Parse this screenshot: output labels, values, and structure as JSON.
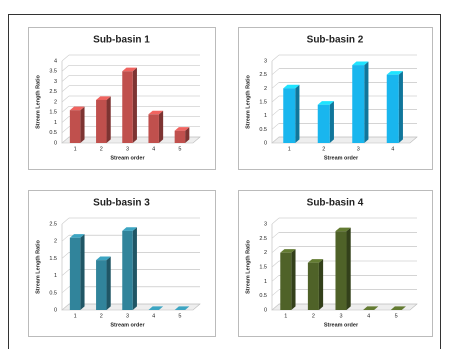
{
  "chart_data": [
    {
      "type": "bar",
      "title": "Sub-basin 1",
      "x_label": "Stream order",
      "y_label": "Stream Length Ratio",
      "categories": [
        "1",
        "2",
        "3",
        "4",
        "5"
      ],
      "values": [
        1.6,
        2.1,
        3.5,
        1.4,
        0.6
      ],
      "color": "#c0504d",
      "ylim": [
        0,
        4
      ],
      "yticks": [
        0,
        0.5,
        1,
        1.5,
        2,
        2.5,
        3,
        3.5,
        4
      ],
      "grid": true
    },
    {
      "type": "bar",
      "title": "Sub-basin 2",
      "x_label": "Stream order",
      "y_label": "Stream Length Ratio",
      "categories": [
        "1",
        "2",
        "3",
        "4"
      ],
      "values": [
        2.0,
        1.4,
        2.85,
        2.5
      ],
      "color": "#19b6ee",
      "ylim": [
        0,
        3
      ],
      "yticks": [
        0,
        0.5,
        1,
        1.5,
        2,
        2.5,
        3
      ],
      "grid": true
    },
    {
      "type": "bar",
      "title": "Sub-basin 3",
      "x_label": "Stream order",
      "y_label": "Stream Length Ratio",
      "categories": [
        "1",
        "2",
        "3",
        "4",
        "5"
      ],
      "values": [
        2.1,
        1.45,
        2.3,
        0,
        0
      ],
      "color": "#31849b",
      "ylim": [
        0,
        2.5
      ],
      "yticks": [
        0,
        0.5,
        1,
        1.5,
        2,
        2.5
      ],
      "grid": true
    },
    {
      "type": "bar",
      "title": "Sub-basin 4",
      "x_label": "Stream order",
      "y_label": "Stream Length Ratio",
      "categories": [
        "1",
        "2",
        "3",
        "4",
        "5"
      ],
      "values": [
        2.0,
        1.65,
        2.75,
        0,
        0
      ],
      "color": "#4f6228",
      "ylim": [
        0,
        3
      ],
      "yticks": [
        0,
        0.5,
        1,
        1.5,
        2,
        2.5,
        3
      ],
      "grid": true
    }
  ]
}
